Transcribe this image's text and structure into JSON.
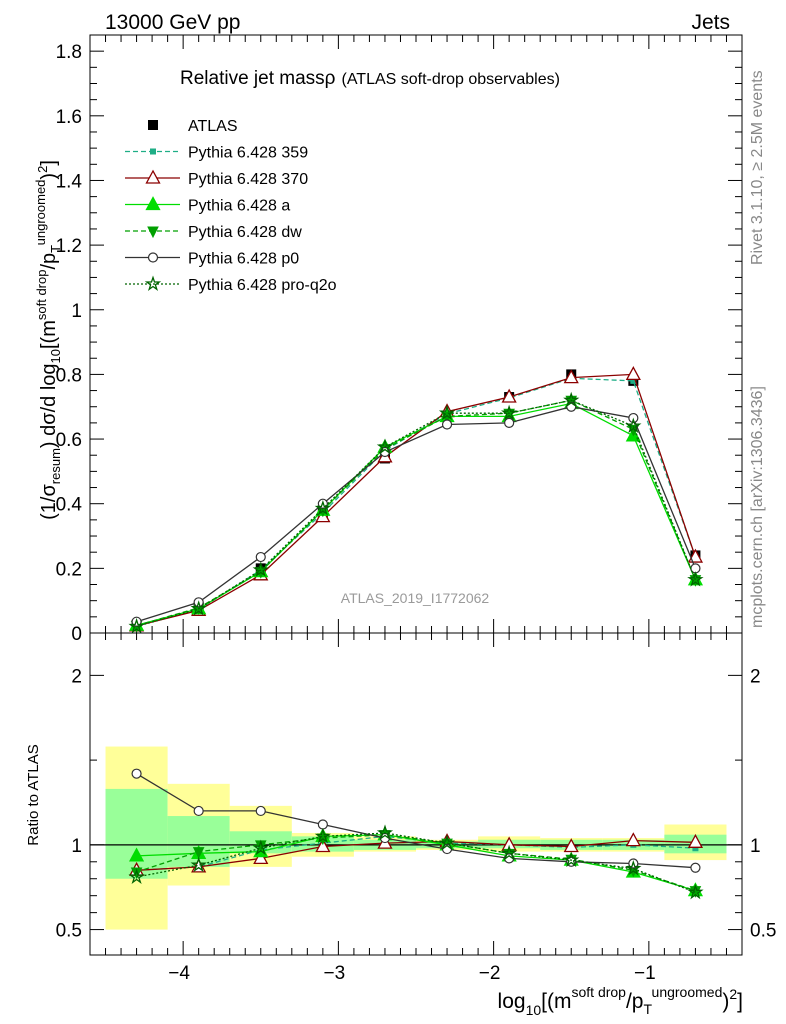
{
  "header": {
    "left": "13000 GeV pp",
    "right": "Jets"
  },
  "side_labels": {
    "top": "Rivet 3.1.10, ≥ 2.5M events",
    "bottom": "mcplots.cern.ch [arXiv:1306.3436]"
  },
  "plot_title": {
    "main": "Relative jet massρ",
    "sub": "(ATLAS soft-drop observables)"
  },
  "analysis_label": "ATLAS_2019_I1772062",
  "ylabel_main": "(1/σresum) dσ/d log10[(msoft drop/pTungroomed)2]",
  "ylabel_ratio": "Ratio to ATLAS",
  "xlabel": "log10[(msoft drop/pTungroomed)2]",
  "colors": {
    "atlas": "#000000",
    "p359": "#1fae86",
    "p370": "#8b0000",
    "pa": "#00dd00",
    "pdw": "#00a000",
    "pp0": "#333333",
    "pq2o": "#006400",
    "band_inner": "#99ff99",
    "band_outer": "#ffff99"
  },
  "chart_data": [
    {
      "type": "line",
      "title": "Relative jet massρ (ATLAS soft-drop observables)",
      "xlabel": "log10[(msoft drop/pTungroomed)2]",
      "ylabel": "(1/σresum) dσ/d log10[(msoft drop/pTungroomed)2]",
      "xlim": [
        -4.6,
        -0.4
      ],
      "ylim": [
        0,
        1.85
      ],
      "yticks": [
        0,
        0.2,
        0.4,
        0.6,
        0.8,
        1,
        1.2,
        1.4,
        1.6,
        1.8
      ],
      "xticks": [
        -4,
        -3,
        -2,
        -1
      ],
      "legend_position": "top-left",
      "x": [
        -4.3,
        -3.9,
        -3.5,
        -3.1,
        -2.7,
        -2.3,
        -1.9,
        -1.5,
        -1.1,
        -0.7
      ],
      "series": [
        {
          "name": "ATLAS",
          "values": [
            0.025,
            0.08,
            0.2,
            0.37,
            0.54,
            0.67,
            0.73,
            0.8,
            0.78,
            0.24
          ]
        },
        {
          "name": "Pythia 6.428 359",
          "values": [
            0.022,
            0.072,
            0.195,
            0.372,
            0.565,
            0.678,
            0.727,
            0.788,
            0.78,
            0.235
          ]
        },
        {
          "name": "Pythia 6.428 370",
          "values": [
            0.022,
            0.07,
            0.18,
            0.36,
            0.545,
            0.685,
            0.73,
            0.79,
            0.8,
            0.235
          ]
        },
        {
          "name": "Pythia 6.428 a",
          "values": [
            0.024,
            0.075,
            0.19,
            0.38,
            0.575,
            0.67,
            0.67,
            0.71,
            0.61,
            0.165
          ]
        },
        {
          "name": "Pythia 6.428 dw",
          "values": [
            0.023,
            0.078,
            0.19,
            0.38,
            0.57,
            0.67,
            0.68,
            0.72,
            0.63,
            0.165
          ]
        },
        {
          "name": "Pythia 6.428 p0",
          "values": [
            0.035,
            0.095,
            0.235,
            0.4,
            0.56,
            0.645,
            0.65,
            0.7,
            0.665,
            0.2
          ]
        },
        {
          "name": "Pythia 6.428 pro-q2o",
          "values": [
            0.02,
            0.075,
            0.195,
            0.385,
            0.575,
            0.68,
            0.68,
            0.72,
            0.64,
            0.165
          ]
        }
      ]
    },
    {
      "type": "line",
      "ylabel": "Ratio to ATLAS",
      "xlim": [
        -4.6,
        -0.4
      ],
      "ylim": [
        0.35,
        2.25
      ],
      "yticks": [
        0.5,
        1,
        2
      ],
      "x": [
        -4.3,
        -3.9,
        -3.5,
        -3.1,
        -2.7,
        -2.3,
        -1.9,
        -1.5,
        -1.1,
        -0.7
      ],
      "uncertainty_bands": {
        "bin_edges": [
          -4.5,
          -4.1,
          -3.7,
          -3.3,
          -2.9,
          -2.5,
          -2.1,
          -1.7,
          -1.3,
          -0.9,
          -0.5
        ],
        "inner": [
          [
            0.8,
            1.33
          ],
          [
            0.87,
            1.17
          ],
          [
            0.95,
            1.08
          ],
          [
            0.96,
            1.05
          ],
          [
            0.97,
            1.03
          ],
          [
            0.98,
            1.02
          ],
          [
            0.98,
            1.03
          ],
          [
            0.97,
            1.03
          ],
          [
            0.97,
            1.03
          ],
          [
            0.95,
            1.06
          ]
        ],
        "outer": [
          [
            0.5,
            1.58
          ],
          [
            0.76,
            1.36
          ],
          [
            0.87,
            1.23
          ],
          [
            0.93,
            1.07
          ],
          [
            0.96,
            1.05
          ],
          [
            0.97,
            1.03
          ],
          [
            0.96,
            1.05
          ],
          [
            0.96,
            1.04
          ],
          [
            0.96,
            1.04
          ],
          [
            0.91,
            1.12
          ]
        ]
      },
      "series": [
        {
          "name": "Pythia 6.428 359",
          "values": [
            0.85,
            0.87,
            0.97,
            1.01,
            1.05,
            1.01,
            1.0,
            0.985,
            1.0,
            0.98
          ]
        },
        {
          "name": "Pythia 6.428 370",
          "values": [
            0.85,
            0.87,
            0.92,
            0.99,
            1.01,
            1.02,
            1.0,
            0.99,
            1.025,
            1.015
          ]
        },
        {
          "name": "Pythia 6.428 a",
          "values": [
            0.935,
            0.95,
            0.96,
            1.05,
            1.06,
            1.0,
            0.935,
            0.91,
            0.84,
            0.73
          ]
        },
        {
          "name": "Pythia 6.428 dw",
          "values": [
            0.84,
            0.96,
            1.0,
            1.04,
            1.06,
            1.01,
            0.95,
            0.915,
            0.85,
            0.73
          ]
        },
        {
          "name": "Pythia 6.428 p0",
          "values": [
            1.42,
            1.2,
            1.2,
            1.12,
            1.04,
            0.975,
            0.92,
            0.9,
            0.89,
            0.865
          ]
        },
        {
          "name": "Pythia 6.428 pro-q2o",
          "values": [
            0.81,
            0.88,
            0.98,
            1.05,
            1.07,
            1.01,
            0.95,
            0.91,
            0.86,
            0.72
          ]
        }
      ]
    }
  ]
}
